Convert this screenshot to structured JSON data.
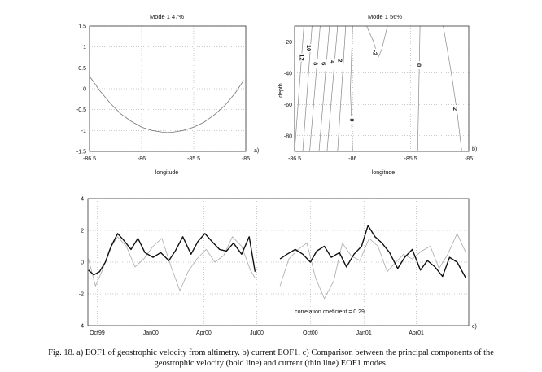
{
  "chart_data": [
    {
      "type": "line",
      "title": "Mode 1  47%",
      "xlabel": "longitude",
      "ylabel": "",
      "panel_label": "a)",
      "xlim": [
        -86.5,
        -85
      ],
      "ylim": [
        -1.5,
        1.5
      ],
      "grid": true,
      "xticks": [
        "-86.5",
        "-86",
        "-85.5",
        "-85"
      ],
      "xtick_values": [
        -86.5,
        -86,
        -85.5,
        -85
      ],
      "yticks": [
        "1.5",
        "1",
        "0.5",
        "0",
        "-0.5",
        "-1",
        "-1.5"
      ],
      "ytick_values": [
        1.5,
        1,
        0.5,
        0,
        -0.5,
        -1,
        -1.5
      ],
      "series": [
        {
          "x": [
            -86.5,
            -86.4,
            -86.3,
            -86.2,
            -86.1,
            -86.0,
            -85.9,
            -85.8,
            -85.75,
            -85.7,
            -85.6,
            -85.5,
            -85.4,
            -85.3,
            -85.2,
            -85.1,
            -85.02
          ],
          "y": [
            0.3,
            -0.05,
            -0.35,
            -0.6,
            -0.78,
            -0.92,
            -1.0,
            -1.04,
            -1.05,
            -1.04,
            -1.0,
            -0.92,
            -0.8,
            -0.62,
            -0.4,
            -0.1,
            0.2
          ]
        }
      ]
    },
    {
      "type": "contour",
      "title": "Mode 1  56%",
      "xlabel": "longitude",
      "ylabel": "depth",
      "panel_label": "b)",
      "xlim": [
        -86.5,
        -85
      ],
      "ylim": [
        -90,
        -10
      ],
      "grid": true,
      "xticks": [
        "-86.5",
        "-86",
        "-85.5",
        "-85"
      ],
      "xtick_values": [
        -86.5,
        -86,
        -85.5,
        -85
      ],
      "yticks": [
        "-20",
        "-40",
        "-60",
        "-80"
      ],
      "ytick_values": [
        -20,
        -40,
        -60,
        -80
      ],
      "contours": [
        {
          "level": "12",
          "x": [
            -86.42,
            -86.5
          ],
          "y": [
            -10,
            -90
          ]
        },
        {
          "level": "10",
          "x": [
            -86.35,
            -86.43
          ],
          "y": [
            -10,
            -90
          ]
        },
        {
          "level": "8",
          "x": [
            -86.28,
            -86.37
          ],
          "y": [
            -10,
            -90
          ]
        },
        {
          "level": "6",
          "x": [
            -86.2,
            -86.29
          ],
          "y": [
            -10,
            -90
          ]
        },
        {
          "level": "4",
          "x": [
            -86.13,
            -86.22
          ],
          "y": [
            -10,
            -90
          ]
        },
        {
          "level": "2",
          "x": [
            -86.06,
            -86.13
          ],
          "y": [
            -10,
            -90
          ]
        },
        {
          "level": "0",
          "x": [
            -86.0,
            -86.02,
            -86.0
          ],
          "y": [
            -10,
            -50,
            -90
          ]
        },
        {
          "level": "-2",
          "x": [
            -85.88,
            -85.82,
            -85.78,
            -85.75,
            -85.7
          ],
          "y": [
            -10,
            -20,
            -30,
            -25,
            -10
          ]
        },
        {
          "level": "0",
          "x": [
            -85.42,
            -85.43,
            -85.44
          ],
          "y": [
            -10,
            -50,
            -90
          ]
        },
        {
          "level": "2",
          "x": [
            -85.22,
            -85.15,
            -85.1,
            -85.06
          ],
          "y": [
            -10,
            -40,
            -65,
            -90
          ]
        }
      ],
      "contour_labels": [
        {
          "text": "12",
          "x": -86.44,
          "y": -30
        },
        {
          "text": "10",
          "x": -86.38,
          "y": -24
        },
        {
          "text": "8",
          "x": -86.32,
          "y": -34
        },
        {
          "text": "6",
          "x": -86.25,
          "y": -34
        },
        {
          "text": "4",
          "x": -86.18,
          "y": -33
        },
        {
          "text": "2",
          "x": -86.11,
          "y": -32
        },
        {
          "text": "0",
          "x": -86.01,
          "y": -70
        },
        {
          "text": "-2",
          "x": -85.81,
          "y": -27
        },
        {
          "text": "0",
          "x": -85.43,
          "y": -35
        },
        {
          "text": "2",
          "x": -85.12,
          "y": -63
        }
      ]
    },
    {
      "type": "line",
      "title": "",
      "xlabel": "",
      "ylabel": "",
      "panel_label": "c)",
      "ylim": [
        -4,
        4
      ],
      "xlim": [
        "1999-09-15",
        "2001-06-30"
      ],
      "grid": true,
      "xticks": [
        "Oct99",
        "Jan00",
        "Apr00",
        "Jul00",
        "Oct00",
        "Jan01",
        "Apr01"
      ],
      "xtick_values": [
        "1999-10-01",
        "2000-01-01",
        "2000-04-01",
        "2000-07-01",
        "2000-10-01",
        "2001-01-01",
        "2001-04-01"
      ],
      "yticks": [
        "4",
        "2",
        "0",
        "-2",
        "-4"
      ],
      "ytick_values": [
        4,
        2,
        0,
        -2,
        -4
      ],
      "annotation": "correlation coeficient = 0.29",
      "series": [
        {
          "style": "bold",
          "x": [
            "1999-09-16",
            "1999-09-25",
            "1999-10-05",
            "1999-10-15",
            "1999-10-25",
            "1999-11-05",
            "1999-11-15",
            "1999-11-28",
            "1999-12-10",
            "1999-12-22",
            "2000-01-05",
            "2000-01-18",
            "2000-02-01",
            "2000-02-12",
            "2000-02-25",
            "2000-03-10",
            "2000-03-22",
            "2000-04-03",
            "2000-04-15",
            "2000-04-28",
            "2000-05-10",
            "2000-05-22",
            "2000-06-05",
            "2000-06-18",
            "2000-06-28",
            null,
            "2000-08-10",
            "2000-08-22",
            "2000-09-05",
            "2000-09-18",
            "2000-10-01",
            "2000-10-12",
            "2000-10-25",
            "2000-11-06",
            "2000-11-20",
            "2000-12-02",
            "2000-12-15",
            "2000-12-28",
            "2001-01-08",
            "2001-01-20",
            "2001-02-01",
            "2001-02-14",
            "2001-02-28",
            "2001-03-12",
            "2001-03-25",
            "2001-04-08",
            "2001-04-20",
            "2001-05-03",
            "2001-05-16",
            "2001-05-28",
            "2001-06-10",
            "2001-06-25"
          ],
          "y": [
            -0.5,
            -0.8,
            -0.6,
            0.0,
            1.0,
            1.8,
            1.4,
            0.8,
            1.5,
            0.6,
            0.3,
            0.6,
            0.1,
            0.7,
            1.6,
            0.5,
            1.3,
            1.8,
            1.3,
            0.8,
            0.7,
            1.2,
            0.5,
            1.6,
            -0.6,
            null,
            0.2,
            0.5,
            0.8,
            0.5,
            0.0,
            0.7,
            1.0,
            0.3,
            0.6,
            -0.3,
            0.5,
            1.0,
            2.3,
            1.6,
            1.2,
            0.6,
            -0.4,
            0.3,
            0.8,
            -0.5,
            0.1,
            -0.3,
            -0.9,
            0.3,
            0.0,
            -1.0
          ]
        },
        {
          "style": "thin",
          "x": [
            "1999-09-16",
            "1999-09-28",
            "1999-10-10",
            "1999-10-22",
            "1999-11-05",
            "1999-11-20",
            "1999-12-05",
            "1999-12-20",
            "2000-01-05",
            "2000-01-20",
            "2000-02-05",
            "2000-02-20",
            "2000-03-05",
            "2000-03-20",
            "2000-04-05",
            "2000-04-20",
            "2000-05-05",
            "2000-05-20",
            "2000-06-05",
            "2000-06-20",
            "2000-06-28",
            null,
            "2000-08-10",
            "2000-08-25",
            "2000-09-10",
            "2000-09-25",
            "2000-10-10",
            "2000-10-25",
            "2000-11-10",
            "2000-11-25",
            "2000-12-10",
            "2000-12-25",
            "2001-01-10",
            "2001-01-25",
            "2001-02-10",
            "2001-02-25",
            "2001-03-10",
            "2001-03-25",
            "2001-04-10",
            "2001-04-25",
            "2001-05-10",
            "2001-05-25",
            "2001-06-10",
            "2001-06-25"
          ],
          "y": [
            0.2,
            -1.5,
            -0.5,
            0.8,
            1.6,
            1.0,
            -0.3,
            0.2,
            1.0,
            1.5,
            -0.3,
            -1.8,
            -0.6,
            0.2,
            0.8,
            0.0,
            0.4,
            1.6,
            1.0,
            -0.5,
            -1.0,
            null,
            -1.5,
            0.2,
            0.8,
            1.2,
            -1.0,
            -2.3,
            -1.2,
            1.2,
            0.4,
            0.1,
            1.5,
            1.0,
            -0.6,
            0.0,
            0.5,
            0.2,
            0.7,
            1.0,
            -0.4,
            0.5,
            1.8,
            0.6
          ]
        }
      ]
    }
  ],
  "caption": {
    "line1": "Fig. 18. a) EOF1 of geostrophic velocity from altimetry. b) current EOF1. c) Comparison between the principal components of the",
    "line2": "geostrophic velocity (bold line) and current (thin line) EOF1 modes."
  }
}
